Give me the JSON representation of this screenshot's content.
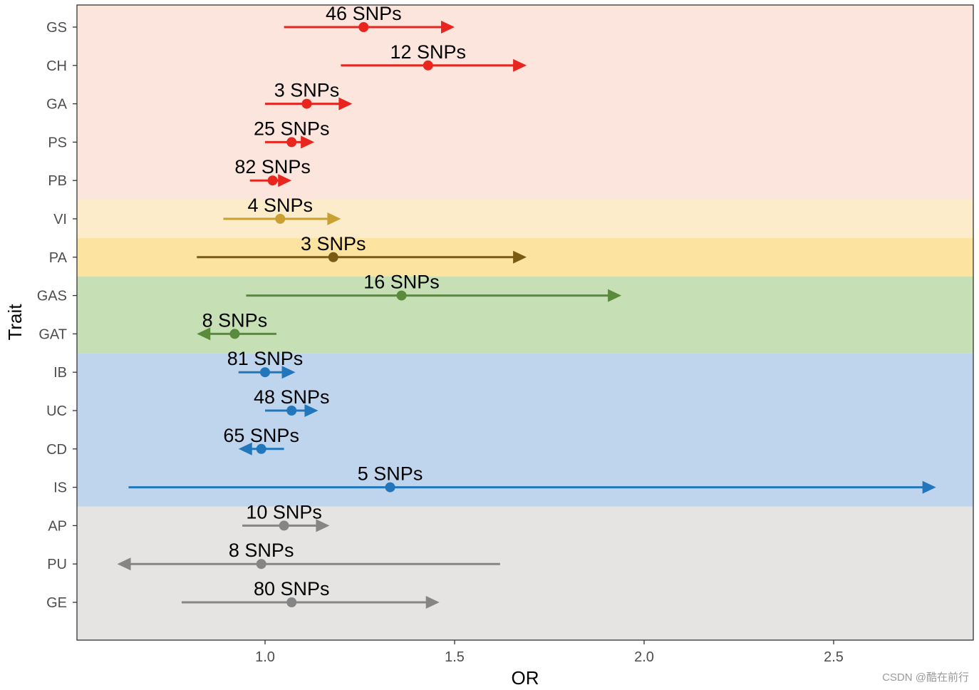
{
  "chart_data": {
    "type": "forest",
    "title": "",
    "xlabel": "OR",
    "ylabel": "Trait",
    "xlim": [
      0.5,
      2.87
    ],
    "xticks": [
      1.0,
      1.5,
      2.0,
      2.5
    ],
    "xtick_labels": [
      "1.0",
      "1.5",
      "2.0",
      "2.5"
    ],
    "grid": false,
    "categories": [
      "GS",
      "CH",
      "GA",
      "PS",
      "PB",
      "VI",
      "PA",
      "GAS",
      "GAT",
      "IB",
      "UC",
      "CD",
      "IS",
      "AP",
      "PU",
      "GE"
    ],
    "rows": [
      {
        "trait": "GS",
        "or": 1.26,
        "lower": 1.05,
        "upper": 1.5,
        "label": "46 SNPs",
        "arrow": "right",
        "color": "#e8251f"
      },
      {
        "trait": "CH",
        "or": 1.43,
        "lower": 1.2,
        "upper": 1.69,
        "label": "12 SNPs",
        "arrow": "right",
        "color": "#e8251f"
      },
      {
        "trait": "GA",
        "or": 1.11,
        "lower": 1.0,
        "upper": 1.23,
        "label": "3 SNPs",
        "arrow": "right",
        "color": "#e8251f"
      },
      {
        "trait": "PS",
        "or": 1.07,
        "lower": 1.0,
        "upper": 1.13,
        "label": "25 SNPs",
        "arrow": "right",
        "color": "#e8251f"
      },
      {
        "trait": "PB",
        "or": 1.02,
        "lower": 0.96,
        "upper": 1.07,
        "label": "82 SNPs",
        "arrow": "right",
        "color": "#e8251f"
      },
      {
        "trait": "VI",
        "or": 1.04,
        "lower": 0.89,
        "upper": 1.2,
        "label": "4 SNPs",
        "arrow": "right",
        "color": "#c9a132"
      },
      {
        "trait": "PA",
        "or": 1.18,
        "lower": 0.82,
        "upper": 1.69,
        "label": "3 SNPs",
        "arrow": "right",
        "color": "#7a5b13"
      },
      {
        "trait": "GAS",
        "or": 1.36,
        "lower": 0.95,
        "upper": 1.94,
        "label": "16 SNPs",
        "arrow": "right",
        "color": "#5a8a3c"
      },
      {
        "trait": "GAT",
        "or": 0.92,
        "lower": 0.82,
        "upper": 1.03,
        "label": "8 SNPs",
        "arrow": "left",
        "color": "#5a8a3c"
      },
      {
        "trait": "IB",
        "or": 1.0,
        "lower": 0.93,
        "upper": 1.08,
        "label": "81 SNPs",
        "arrow": "right",
        "color": "#2176bc"
      },
      {
        "trait": "UC",
        "or": 1.07,
        "lower": 1.0,
        "upper": 1.14,
        "label": "48 SNPs",
        "arrow": "right",
        "color": "#2176bc"
      },
      {
        "trait": "CD",
        "or": 0.99,
        "lower": 0.93,
        "upper": 1.05,
        "label": "65 SNPs",
        "arrow": "left",
        "color": "#2176bc"
      },
      {
        "trait": "IS",
        "or": 1.33,
        "lower": 0.64,
        "upper": 2.77,
        "label": "5 SNPs",
        "arrow": "right",
        "color": "#2176bc"
      },
      {
        "trait": "AP",
        "or": 1.05,
        "lower": 0.94,
        "upper": 1.17,
        "label": "10 SNPs",
        "arrow": "right",
        "color": "#858585"
      },
      {
        "trait": "PU",
        "or": 0.99,
        "lower": 0.61,
        "upper": 1.62,
        "label": "8 SNPs",
        "arrow": "left",
        "color": "#858585"
      },
      {
        "trait": "GE",
        "or": 1.07,
        "lower": 0.78,
        "upper": 1.46,
        "label": "80 SNPs",
        "arrow": "right",
        "color": "#858585"
      }
    ],
    "bands": [
      {
        "traits": [
          "GS",
          "CH",
          "GA",
          "PS",
          "PB"
        ],
        "color": "#fbe5dd"
      },
      {
        "traits": [
          "VI"
        ],
        "color": "#fdecc9"
      },
      {
        "traits": [
          "PA"
        ],
        "color": "#fce3a0"
      },
      {
        "traits": [
          "GAS",
          "GAT"
        ],
        "color": "#c6dfb4"
      },
      {
        "traits": [
          "IB",
          "UC",
          "CD",
          "IS"
        ],
        "color": "#bfd5ed"
      },
      {
        "traits": [
          "AP",
          "PU",
          "GE"
        ],
        "color": "#e6e4e3"
      }
    ]
  },
  "watermark": "CSDN @酷在前行"
}
